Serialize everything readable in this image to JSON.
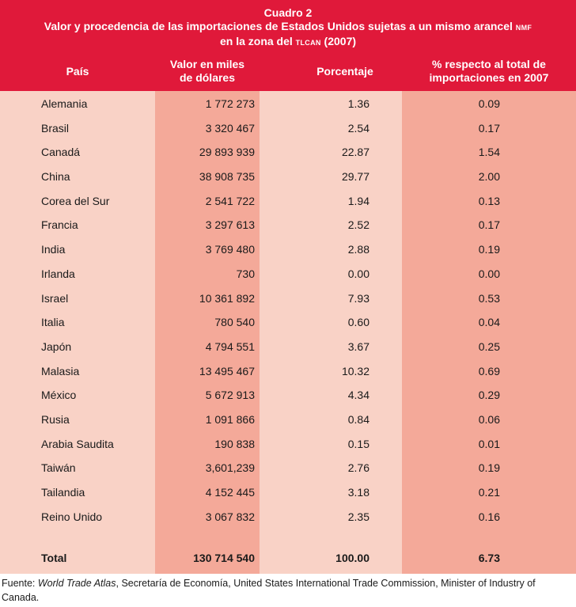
{
  "header": {
    "cuadro": "Cuadro 2",
    "title_line1_main": "Valor y procedencia de las importaciones de Estados Unidos sujetas a un mismo arancel ",
    "title_line1_sc": "NMF",
    "title_line2_main": "en la zona del ",
    "title_line2_sc": "TLCAN",
    "title_line2_tail": " (2007)"
  },
  "columns": {
    "pais": "País",
    "valor_line1": "Valor en miles",
    "valor_line2": "de dólares",
    "porcentaje": "Porcentaje",
    "respecto_line1": "% respecto al total de",
    "respecto_line2": "importaciones en 2007"
  },
  "rows": [
    {
      "pais": "Alemania",
      "valor": "1 772 273",
      "porcentaje": "1.36",
      "respecto": "0.09"
    },
    {
      "pais": "Brasil",
      "valor": "3 320 467",
      "porcentaje": "2.54",
      "respecto": "0.17"
    },
    {
      "pais": "Canadá",
      "valor": "29 893 939",
      "porcentaje": "22.87",
      "respecto": "1.54"
    },
    {
      "pais": "China",
      "valor": "38 908 735",
      "porcentaje": "29.77",
      "respecto": "2.00"
    },
    {
      "pais": "Corea del Sur",
      "valor": "2 541 722",
      "porcentaje": "1.94",
      "respecto": "0.13"
    },
    {
      "pais": "Francia",
      "valor": "3 297 613",
      "porcentaje": "2.52",
      "respecto": "0.17"
    },
    {
      "pais": "India",
      "valor": "3 769 480",
      "porcentaje": "2.88",
      "respecto": "0.19"
    },
    {
      "pais": "Irlanda",
      "valor": "730",
      "porcentaje": "0.00",
      "respecto": "0.00"
    },
    {
      "pais": "Israel",
      "valor": "10 361 892",
      "porcentaje": "7.93",
      "respecto": "0.53"
    },
    {
      "pais": "Italia",
      "valor": "780 540",
      "porcentaje": "0.60",
      "respecto": "0.04"
    },
    {
      "pais": "Japón",
      "valor": "4 794 551",
      "porcentaje": "3.67",
      "respecto": "0.25"
    },
    {
      "pais": "Malasia",
      "valor": "13 495 467",
      "porcentaje": "10.32",
      "respecto": "0.69"
    },
    {
      "pais": "México",
      "valor": "5 672 913",
      "porcentaje": "4.34",
      "respecto": "0.29"
    },
    {
      "pais": "Rusia",
      "valor": "1 091 866",
      "porcentaje": "0.84",
      "respecto": "0.06"
    },
    {
      "pais": "Arabia Saudita",
      "valor": "190 838",
      "porcentaje": "0.15",
      "respecto": "0.01"
    },
    {
      "pais": "Taiwán",
      "valor": "3,601,239",
      "porcentaje": "2.76",
      "respecto": "0.19"
    },
    {
      "pais": "Tailandia",
      "valor": "4 152 445",
      "porcentaje": "3.18",
      "respecto": "0.21"
    },
    {
      "pais": "Reino Unido",
      "valor": "3 067 832",
      "porcentaje": "2.35",
      "respecto": "0.16"
    }
  ],
  "total": {
    "label": "Total",
    "valor": "130 714 540",
    "porcentaje": "100.00",
    "respecto": "6.73"
  },
  "footnote": {
    "prefix": "Fuente: ",
    "source_italic": "World Trade Atlas",
    "rest": ", Secretaría de Economía, United States International Trade Commission, Minister of Industry of Canada."
  },
  "colors": {
    "header": "#e0193a",
    "light_column": "#f9d2c6",
    "dark_column": "#f4a999"
  }
}
